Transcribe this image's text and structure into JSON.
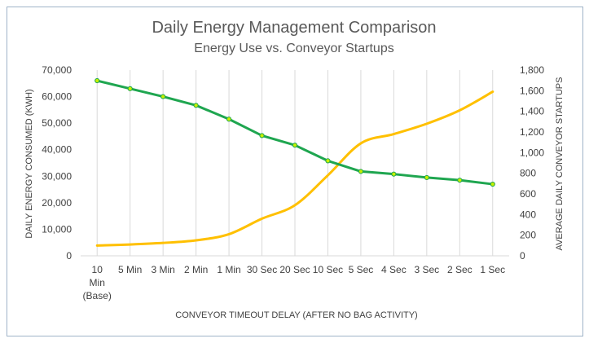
{
  "colors": {
    "energy": "#1fa650",
    "startups": "#ffc000",
    "marker_fill": "#c6f000",
    "grid": "#d9d9d9",
    "text": "#404040",
    "frame": "#9fb3c8"
  },
  "chart_data": {
    "type": "line",
    "title": "Daily Energy Management Comparison",
    "subtitle": "Energy Use vs. Conveyor Startups",
    "xlabel": "CONVEYOR TIMEOUT DELAY (AFTER NO BAG ACTIVITY)",
    "ylabel": "DAILY ENERGY CONSUMED (KWH)",
    "y2label": "AVERAGE DAILY CONVEYOR STARTUPS",
    "categories": [
      [
        "10",
        "Min",
        "(Base)"
      ],
      [
        "5 Min"
      ],
      [
        "3 Min"
      ],
      [
        "2 Min"
      ],
      [
        "1 Min"
      ],
      [
        "30 Sec"
      ],
      [
        "20 Sec"
      ],
      [
        "10 Sec"
      ],
      [
        "5 Sec"
      ],
      [
        "4 Sec"
      ],
      [
        "3 Sec"
      ],
      [
        "2 Sec"
      ],
      [
        "1 Sec"
      ]
    ],
    "ylim": [
      0,
      70000
    ],
    "yticks": [
      "0",
      "10,000",
      "20,000",
      "30,000",
      "40,000",
      "50,000",
      "60,000",
      "70,000"
    ],
    "y2lim": [
      0,
      1800
    ],
    "y2ticks": [
      "0",
      "200",
      "400",
      "600",
      "800",
      "1,000",
      "1,200",
      "1,400",
      "1,600",
      "1,800"
    ],
    "grid": "vertical",
    "legend": "none",
    "series": [
      {
        "axis": "left",
        "markers": true,
        "values": [
          66000,
          63000,
          60000,
          56700,
          51500,
          45300,
          41700,
          35800,
          31800,
          30800,
          29500,
          28500,
          27000
        ]
      },
      {
        "axis": "right",
        "markers": false,
        "values": [
          100,
          110,
          125,
          150,
          210,
          360,
          490,
          780,
          1090,
          1180,
          1280,
          1410,
          1590
        ]
      }
    ]
  }
}
